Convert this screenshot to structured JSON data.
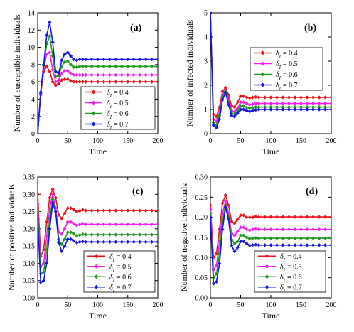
{
  "chart_data": [
    {
      "type": "line",
      "panel_label": "(a)",
      "xlabel": "Time",
      "ylabel": "Number of susceptible individuals",
      "xlim": [
        0,
        200
      ],
      "ylim": [
        0,
        14
      ],
      "xticks": [
        "0",
        "50",
        "100",
        "150",
        "200"
      ],
      "yticks": [
        "0",
        "2",
        "4",
        "6",
        "8",
        "10",
        "12",
        "14"
      ],
      "legend_position": "center-right",
      "x": [
        0,
        5,
        10,
        15,
        20,
        25,
        30,
        35,
        40,
        45,
        50,
        55,
        60,
        65,
        70,
        75,
        80,
        90,
        100,
        110,
        120,
        130,
        140,
        150,
        160,
        170,
        180,
        190,
        200
      ],
      "series": [
        {
          "label_prefix": "δ",
          "label_sub": "I",
          "label_value": "= 0.4",
          "color": "#e8141c",
          "values": [
            0,
            4.5,
            7.2,
            7.8,
            7.2,
            6.0,
            5.6,
            5.8,
            6.2,
            6.3,
            6.3,
            6.1,
            6.0,
            6.0,
            6.0,
            6.0,
            6.0,
            6.0,
            6.0,
            6.0,
            6.0,
            6.0,
            6.0,
            6.0,
            6.0,
            6.0,
            6.0,
            6.0,
            6.0
          ]
        },
        {
          "label_prefix": "δ",
          "label_sub": "I",
          "label_value": "= 0.5",
          "color": "#f01ef0",
          "values": [
            0,
            4.6,
            7.6,
            9.2,
            9.4,
            7.4,
            6.0,
            6.2,
            7.0,
            7.3,
            7.3,
            7.0,
            6.8,
            6.8,
            6.8,
            6.8,
            6.8,
            6.8,
            6.8,
            6.8,
            6.8,
            6.8,
            6.8,
            6.8,
            6.8,
            6.8,
            6.8,
            6.8,
            6.8
          ]
        },
        {
          "label_prefix": "δ",
          "label_sub": "I",
          "label_value": "= 0.6",
          "color": "#1e9b1e",
          "values": [
            0,
            4.7,
            7.9,
            10.4,
            11.3,
            9.0,
            6.6,
            6.7,
            7.8,
            8.3,
            8.4,
            8.0,
            7.7,
            7.7,
            7.8,
            7.8,
            7.8,
            7.8,
            7.8,
            7.8,
            7.8,
            7.8,
            7.8,
            7.8,
            7.8,
            7.8,
            7.8,
            7.8,
            7.8
          ]
        },
        {
          "label_prefix": "δ",
          "label_sub": "I",
          "label_value": "= 0.7",
          "color": "#1414e6",
          "values": [
            0,
            4.8,
            8.0,
            11.4,
            12.9,
            10.6,
            7.2,
            7.0,
            8.5,
            9.2,
            9.4,
            9.0,
            8.6,
            8.5,
            8.6,
            8.6,
            8.6,
            8.6,
            8.6,
            8.6,
            8.6,
            8.6,
            8.6,
            8.6,
            8.6,
            8.6,
            8.6,
            8.6,
            8.6
          ]
        }
      ]
    },
    {
      "type": "line",
      "panel_label": "(b)",
      "xlabel": "Time",
      "ylabel": "Number of infected individuals",
      "xlim": [
        0,
        200
      ],
      "ylim": [
        0,
        5
      ],
      "xticks": [
        "0",
        "50",
        "100",
        "150",
        "200"
      ],
      "yticks": [
        "0",
        "1",
        "2",
        "3",
        "4",
        "5"
      ],
      "legend_position": "center-right",
      "x": [
        0,
        5,
        10,
        15,
        20,
        25,
        30,
        35,
        40,
        45,
        50,
        55,
        60,
        65,
        70,
        75,
        80,
        90,
        100,
        110,
        120,
        130,
        140,
        150,
        160,
        170,
        180,
        190,
        200
      ],
      "series": [
        {
          "label_prefix": "δ",
          "label_sub": "I",
          "label_value": "= 0.4",
          "color": "#e8141c",
          "values": [
            5.0,
            0.8,
            0.7,
            1.1,
            1.75,
            1.9,
            1.6,
            1.15,
            1.1,
            1.3,
            1.55,
            1.55,
            1.5,
            1.48,
            1.5,
            1.52,
            1.5,
            1.5,
            1.5,
            1.5,
            1.5,
            1.5,
            1.5,
            1.5,
            1.5,
            1.5,
            1.5,
            1.5,
            1.5
          ]
        },
        {
          "label_prefix": "δ",
          "label_sub": "I",
          "label_value": "= 0.5",
          "color": "#f01ef0",
          "values": [
            5.0,
            0.6,
            0.5,
            0.9,
            1.6,
            1.8,
            1.45,
            0.95,
            0.9,
            1.05,
            1.3,
            1.3,
            1.25,
            1.2,
            1.22,
            1.25,
            1.25,
            1.25,
            1.25,
            1.25,
            1.25,
            1.25,
            1.25,
            1.25,
            1.25,
            1.25,
            1.25,
            1.25,
            1.25
          ]
        },
        {
          "label_prefix": "δ",
          "label_sub": "I",
          "label_value": "= 0.6",
          "color": "#1e9b1e",
          "values": [
            5.0,
            0.45,
            0.35,
            0.75,
            1.5,
            1.75,
            1.3,
            0.85,
            0.8,
            0.95,
            1.15,
            1.15,
            1.08,
            1.05,
            1.07,
            1.1,
            1.1,
            1.1,
            1.1,
            1.1,
            1.1,
            1.1,
            1.1,
            1.1,
            1.1,
            1.1,
            1.1,
            1.1,
            1.1
          ]
        },
        {
          "label_prefix": "δ",
          "label_sub": "I",
          "label_value": "= 0.7",
          "color": "#1414e6",
          "values": [
            5.0,
            0.35,
            0.25,
            0.6,
            1.4,
            1.7,
            1.2,
            0.75,
            0.7,
            0.85,
            1.0,
            1.0,
            0.95,
            0.92,
            0.95,
            0.98,
            1.0,
            1.0,
            1.0,
            1.0,
            1.0,
            1.0,
            1.0,
            1.0,
            1.0,
            1.0,
            1.0,
            1.0,
            1.0
          ]
        }
      ]
    },
    {
      "type": "line",
      "panel_label": "(c)",
      "xlabel": "Time",
      "ylabel": "Number of positive individuals",
      "xlim": [
        0,
        200
      ],
      "ylim": [
        0,
        0.35
      ],
      "xticks": [
        "0",
        "50",
        "100",
        "150",
        "200"
      ],
      "yticks": [
        "0.00",
        "0.05",
        "0.10",
        "0.15",
        "0.20",
        "0.25",
        "0.30",
        "0.35"
      ],
      "legend_position": "lower-right",
      "x": [
        0,
        5,
        10,
        15,
        20,
        25,
        30,
        35,
        40,
        45,
        50,
        55,
        60,
        65,
        70,
        75,
        80,
        90,
        100,
        110,
        120,
        130,
        140,
        150,
        160,
        170,
        180,
        190,
        200
      ],
      "series": [
        {
          "label_prefix": "δ",
          "label_sub": "I",
          "label_value": "= 0.4",
          "color": "#e8141c",
          "values": [
            0.3,
            0.12,
            0.14,
            0.22,
            0.29,
            0.315,
            0.29,
            0.24,
            0.23,
            0.245,
            0.26,
            0.26,
            0.255,
            0.25,
            0.252,
            0.255,
            0.253,
            0.253,
            0.253,
            0.253,
            0.253,
            0.253,
            0.253,
            0.253,
            0.253,
            0.253,
            0.253,
            0.253,
            0.253
          ]
        },
        {
          "label_prefix": "δ",
          "label_sub": "I",
          "label_value": "= 0.5",
          "color": "#f01ef0",
          "values": [
            0.27,
            0.09,
            0.1,
            0.18,
            0.26,
            0.3,
            0.26,
            0.19,
            0.185,
            0.2,
            0.22,
            0.22,
            0.215,
            0.21,
            0.212,
            0.215,
            0.213,
            0.213,
            0.213,
            0.213,
            0.213,
            0.213,
            0.213,
            0.213,
            0.213,
            0.213,
            0.213,
            0.213,
            0.213
          ]
        },
        {
          "label_prefix": "δ",
          "label_sub": "I",
          "label_value": "= 0.6",
          "color": "#1e9b1e",
          "values": [
            0.25,
            0.07,
            0.075,
            0.14,
            0.23,
            0.285,
            0.25,
            0.17,
            0.155,
            0.17,
            0.19,
            0.19,
            0.185,
            0.18,
            0.182,
            0.184,
            0.183,
            0.183,
            0.183,
            0.183,
            0.183,
            0.183,
            0.183,
            0.183,
            0.183,
            0.183,
            0.183,
            0.183,
            0.183
          ]
        },
        {
          "label_prefix": "δ",
          "label_sub": "I",
          "label_value": "= 0.7",
          "color": "#1414e6",
          "values": [
            0.23,
            0.045,
            0.05,
            0.1,
            0.2,
            0.275,
            0.25,
            0.16,
            0.135,
            0.15,
            0.17,
            0.17,
            0.165,
            0.16,
            0.162,
            0.163,
            0.162,
            0.162,
            0.162,
            0.162,
            0.162,
            0.162,
            0.162,
            0.162,
            0.162,
            0.162,
            0.162,
            0.162,
            0.162
          ]
        }
      ]
    },
    {
      "type": "line",
      "panel_label": "(d)",
      "xlabel": "Time",
      "ylabel": "Number of negative individuals",
      "xlim": [
        0,
        200
      ],
      "ylim": [
        0,
        0.3
      ],
      "xticks": [
        "0",
        "50",
        "100",
        "150",
        "200"
      ],
      "yticks": [
        "0.00",
        "0.05",
        "0.10",
        "0.15",
        "0.20",
        "0.25",
        "0.30"
      ],
      "legend_position": "lower-right",
      "x": [
        0,
        5,
        10,
        15,
        20,
        25,
        30,
        35,
        40,
        45,
        50,
        55,
        60,
        65,
        70,
        75,
        80,
        90,
        100,
        110,
        120,
        130,
        140,
        150,
        160,
        170,
        180,
        190,
        200
      ],
      "series": [
        {
          "label_prefix": "δ",
          "label_sub": "I",
          "label_value": "= 0.4",
          "color": "#e8141c",
          "values": [
            0.23,
            0.1,
            0.11,
            0.17,
            0.235,
            0.255,
            0.23,
            0.19,
            0.185,
            0.195,
            0.205,
            0.205,
            0.2,
            0.2,
            0.2,
            0.202,
            0.201,
            0.201,
            0.201,
            0.201,
            0.201,
            0.201,
            0.201,
            0.201,
            0.201,
            0.201,
            0.201,
            0.201,
            0.201
          ]
        },
        {
          "label_prefix": "δ",
          "label_sub": "I",
          "label_value": "= 0.5",
          "color": "#f01ef0",
          "values": [
            0.22,
            0.07,
            0.08,
            0.14,
            0.21,
            0.24,
            0.21,
            0.16,
            0.155,
            0.165,
            0.175,
            0.175,
            0.17,
            0.168,
            0.17,
            0.171,
            0.17,
            0.17,
            0.17,
            0.17,
            0.17,
            0.17,
            0.17,
            0.17,
            0.17,
            0.17,
            0.17,
            0.17,
            0.17
          ]
        },
        {
          "label_prefix": "δ",
          "label_sub": "I",
          "label_value": "= 0.6",
          "color": "#1e9b1e",
          "values": [
            0.21,
            0.05,
            0.06,
            0.11,
            0.19,
            0.23,
            0.2,
            0.145,
            0.135,
            0.14,
            0.155,
            0.155,
            0.15,
            0.147,
            0.148,
            0.149,
            0.148,
            0.148,
            0.148,
            0.148,
            0.148,
            0.148,
            0.148,
            0.148,
            0.148,
            0.148,
            0.148,
            0.148,
            0.148
          ]
        },
        {
          "label_prefix": "δ",
          "label_sub": "I",
          "label_value": "= 0.7",
          "color": "#1414e6",
          "values": [
            0.2,
            0.035,
            0.04,
            0.085,
            0.17,
            0.225,
            0.195,
            0.13,
            0.115,
            0.125,
            0.14,
            0.14,
            0.135,
            0.13,
            0.131,
            0.132,
            0.131,
            0.131,
            0.131,
            0.131,
            0.131,
            0.131,
            0.131,
            0.131,
            0.131,
            0.131,
            0.131,
            0.131,
            0.131
          ]
        }
      ]
    }
  ]
}
